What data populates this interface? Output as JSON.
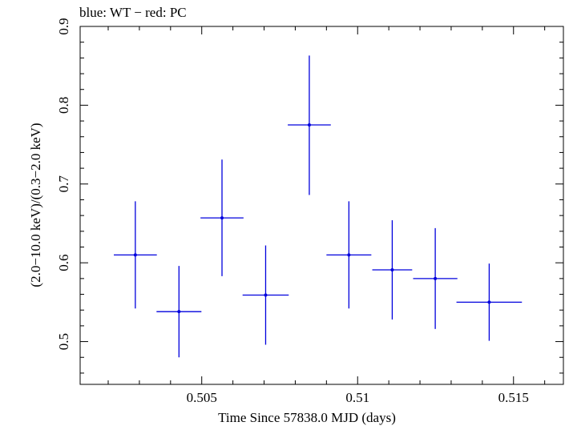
{
  "chart_data": {
    "type": "scatter",
    "title": "blue: WT − red: PC",
    "xlabel": "Time Since 57838.0 MJD (days)",
    "ylabel": "(2.0−10.0 keV)/(0.3−2.0 keV)",
    "xlim": [
      0.5011,
      0.5166
    ],
    "ylim": [
      0.4457,
      0.9
    ],
    "xticks": [
      {
        "value": 0.505,
        "label": "0.505"
      },
      {
        "value": 0.51,
        "label": "0.51"
      },
      {
        "value": 0.515,
        "label": "0.515"
      }
    ],
    "yticks": [
      {
        "value": 0.5,
        "label": "0.5"
      },
      {
        "value": 0.6,
        "label": "0.6"
      },
      {
        "value": 0.7,
        "label": "0.7"
      },
      {
        "value": 0.8,
        "label": "0.8"
      },
      {
        "value": 0.9,
        "label": "0.9"
      }
    ],
    "series": [
      {
        "name": "WT",
        "color": "#0000dd",
        "points": [
          {
            "x": 0.50287,
            "xerr": 0.00069,
            "y": 0.61,
            "yerr_low": 0.068,
            "yerr_high": 0.068
          },
          {
            "x": 0.50427,
            "xerr": 0.00072,
            "y": 0.538,
            "yerr_low": 0.058,
            "yerr_high": 0.058
          },
          {
            "x": 0.50565,
            "xerr": 0.00069,
            "y": 0.657,
            "yerr_low": 0.074,
            "yerr_high": 0.074
          },
          {
            "x": 0.50705,
            "xerr": 0.00074,
            "y": 0.559,
            "yerr_low": 0.063,
            "yerr_high": 0.063
          },
          {
            "x": 0.50845,
            "xerr": 0.00069,
            "y": 0.775,
            "yerr_low": 0.089,
            "yerr_high": 0.088
          },
          {
            "x": 0.50972,
            "xerr": 0.00072,
            "y": 0.61,
            "yerr_low": 0.068,
            "yerr_high": 0.068
          },
          {
            "x": 0.51111,
            "xerr": 0.00064,
            "y": 0.591,
            "yerr_low": 0.063,
            "yerr_high": 0.063
          },
          {
            "x": 0.51249,
            "xerr": 0.00071,
            "y": 0.58,
            "yerr_low": 0.064,
            "yerr_high": 0.064
          },
          {
            "x": 0.51422,
            "xerr": 0.00105,
            "y": 0.55,
            "yerr_low": 0.049,
            "yerr_high": 0.049
          }
        ]
      }
    ]
  }
}
